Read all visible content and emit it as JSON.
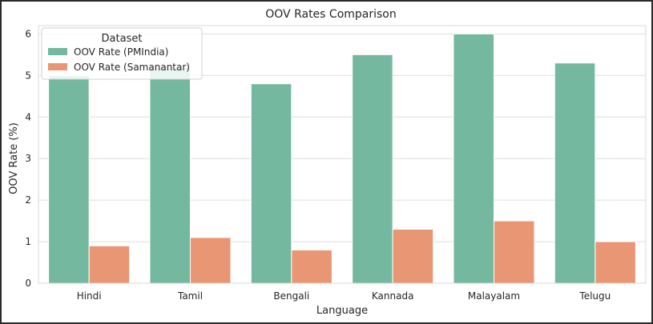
{
  "chart_data": {
    "type": "bar",
    "title": "OOV Rates Comparison",
    "xlabel": "Language",
    "ylabel": "OOV Rate (%)",
    "categories": [
      "Hindi",
      "Tamil",
      "Bengali",
      "Kannada",
      "Malayalam",
      "Telugu"
    ],
    "series": [
      {
        "name": "OOV Rate (PMIndia)",
        "values": [
          5.0,
          5.2,
          4.8,
          5.5,
          6.0,
          5.3
        ],
        "color": "#74b8a0"
      },
      {
        "name": "OOV Rate (Samanantar)",
        "values": [
          0.9,
          1.1,
          0.8,
          1.3,
          1.5,
          1.0
        ],
        "color": "#e99674"
      }
    ],
    "ylim": [
      0,
      6.2
    ],
    "yticks": [
      0,
      1,
      2,
      3,
      4,
      5,
      6
    ],
    "grid": true,
    "legend": {
      "title": "Dataset",
      "position": "top-left"
    }
  }
}
